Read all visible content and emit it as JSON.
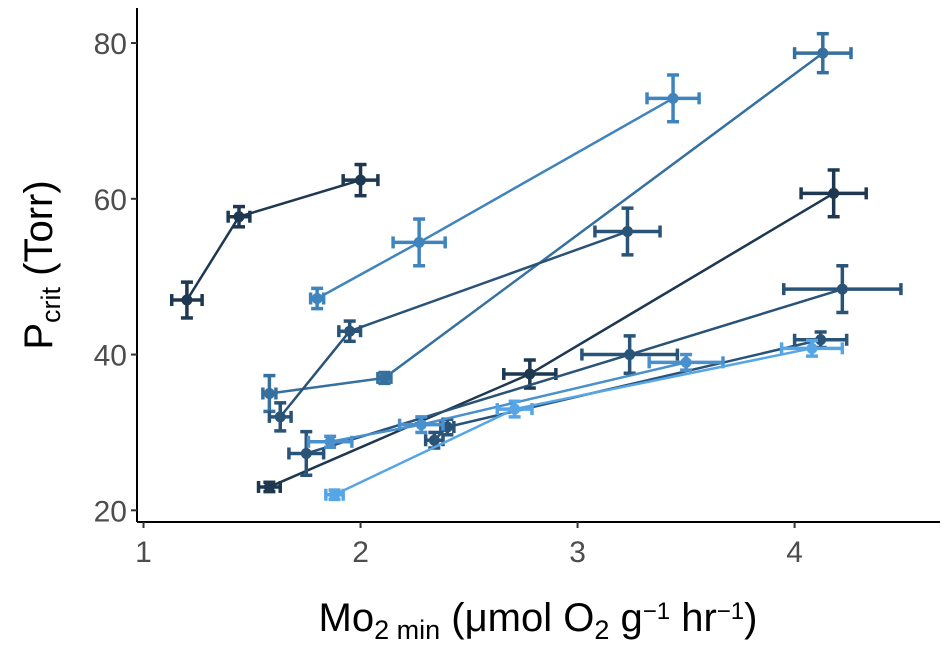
{
  "chart_data": {
    "type": "scatter",
    "title": "",
    "xlabel": {
      "parts": [
        {
          "text": "Mo",
          "style": "normal"
        },
        {
          "text": "2 min",
          "style": "sub"
        },
        {
          "text": " (μmol O",
          "style": "normal"
        },
        {
          "text": "2",
          "style": "sub"
        },
        {
          "text": " g",
          "style": "normal"
        },
        {
          "text": "−1",
          "style": "sup"
        },
        {
          "text": " hr",
          "style": "normal"
        },
        {
          "text": "−1",
          "style": "sup"
        },
        {
          "text": ")",
          "style": "normal"
        }
      ]
    },
    "ylabel": {
      "parts": [
        {
          "text": "P",
          "style": "normal"
        },
        {
          "text": "crit",
          "style": "sub"
        },
        {
          "text": " (Torr)",
          "style": "normal"
        }
      ]
    },
    "xlim": [
      0.97,
      4.67
    ],
    "ylim": [
      18.5,
      84.5
    ],
    "xticks": [
      1,
      2,
      3,
      4
    ],
    "yticks": [
      20,
      40,
      60,
      80
    ],
    "grid": false,
    "legend": "none",
    "series": [
      {
        "color": "#1d3850",
        "points": [
          {
            "x": 1.2,
            "y": 47.0,
            "xerr": 0.07,
            "yerr": 2.3
          },
          {
            "x": 1.44,
            "y": 57.7,
            "xerr": 0.05,
            "yerr": 1.3
          },
          {
            "x": 2.0,
            "y": 62.4,
            "xerr": 0.08,
            "yerr": 2.0
          }
        ]
      },
      {
        "color": "#3f84bd",
        "points": [
          {
            "x": 1.8,
            "y": 47.2,
            "xerr": 0.03,
            "yerr": 1.3
          },
          {
            "x": 2.27,
            "y": 54.4,
            "xerr": 0.12,
            "yerr": 3.0
          },
          {
            "x": 3.44,
            "y": 72.9,
            "xerr": 0.12,
            "yerr": 3.0
          }
        ]
      },
      {
        "color": "#36709f",
        "points": [
          {
            "x": 1.58,
            "y": 35.0,
            "xerr": 0.03,
            "yerr": 2.3
          },
          {
            "x": 2.11,
            "y": 37.0,
            "xerr": 0.03,
            "yerr": 0.7
          },
          {
            "x": 4.13,
            "y": 78.7,
            "xerr": 0.13,
            "yerr": 2.5
          }
        ]
      },
      {
        "color": "#2a5378",
        "points": [
          {
            "x": 1.63,
            "y": 32.0,
            "xerr": 0.05,
            "yerr": 1.8
          },
          {
            "x": 1.95,
            "y": 43.0,
            "xerr": 0.05,
            "yerr": 1.3
          },
          {
            "x": 3.23,
            "y": 55.8,
            "xerr": 0.15,
            "yerr": 3.0
          }
        ]
      },
      {
        "color": "#1d3850",
        "points": [
          {
            "x": 1.58,
            "y": 23.0,
            "xerr": 0.05,
            "yerr": 0.6
          },
          {
            "x": 2.78,
            "y": 37.5,
            "xerr": 0.12,
            "yerr": 1.8
          },
          {
            "x": 4.18,
            "y": 60.7,
            "xerr": 0.15,
            "yerr": 3.0
          }
        ]
      },
      {
        "color": "#2a5378",
        "points": [
          {
            "x": 1.75,
            "y": 27.3,
            "xerr": 0.08,
            "yerr": 2.8
          },
          {
            "x": 3.24,
            "y": 40.0,
            "xerr": 0.22,
            "yerr": 2.4
          },
          {
            "x": 4.22,
            "y": 48.4,
            "xerr": 0.27,
            "yerr": 3.0
          }
        ]
      },
      {
        "color": "#2a5378",
        "points": [
          {
            "x": 2.34,
            "y": 29.0,
            "xerr": 0.04,
            "yerr": 1.0
          },
          {
            "x": 2.4,
            "y": 30.7,
            "xerr": 0.03,
            "yerr": 1.0
          },
          {
            "x": 4.12,
            "y": 41.9,
            "xerr": 0.12,
            "yerr": 1.0
          }
        ]
      },
      {
        "color": "#4a90cd",
        "points": [
          {
            "x": 1.86,
            "y": 28.8,
            "xerr": 0.1,
            "yerr": 0.7
          },
          {
            "x": 2.28,
            "y": 31.0,
            "xerr": 0.1,
            "yerr": 1.0
          },
          {
            "x": 3.5,
            "y": 39.0,
            "xerr": 0.17,
            "yerr": 1.0
          }
        ]
      },
      {
        "color": "#56a5e6",
        "points": [
          {
            "x": 1.88,
            "y": 22.0,
            "xerr": 0.04,
            "yerr": 0.6
          },
          {
            "x": 2.71,
            "y": 33.0,
            "xerr": 0.08,
            "yerr": 1.0
          },
          {
            "x": 4.08,
            "y": 40.8,
            "xerr": 0.14,
            "yerr": 1.0
          }
        ]
      }
    ]
  }
}
